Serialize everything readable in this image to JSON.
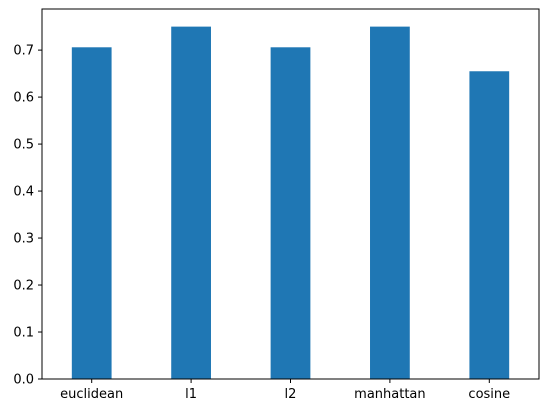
{
  "chart_data": {
    "type": "bar",
    "categories": [
      "euclidean",
      "l1",
      "l2",
      "manhattan",
      "cosine"
    ],
    "values": [
      0.706,
      0.75,
      0.706,
      0.75,
      0.655
    ],
    "title": "",
    "xlabel": "",
    "ylabel": "",
    "ylim": [
      0,
      0.7875
    ],
    "yticks": [
      "0.0",
      "0.1",
      "0.2",
      "0.3",
      "0.4",
      "0.5",
      "0.6",
      "0.7"
    ],
    "bar_color": "#1f77b4",
    "grid": false,
    "legend": "none"
  }
}
